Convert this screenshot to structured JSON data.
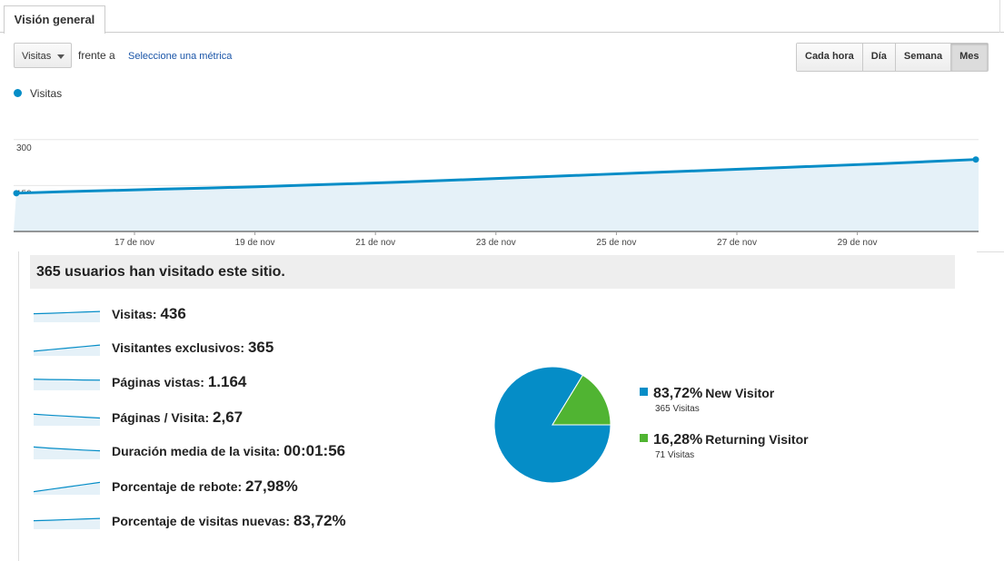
{
  "tab": {
    "label": "Visión general"
  },
  "controls": {
    "metric_select": "Visitas",
    "versus_text": "frente a",
    "select_metric_link": "Seleccione una métrica",
    "granularity": [
      "Cada hora",
      "Día",
      "Semana",
      "Mes"
    ],
    "granularity_active": "Mes"
  },
  "colors": {
    "accent": "#058dc7",
    "returning": "#50b432"
  },
  "chart_data": {
    "type": "area",
    "series": [
      {
        "name": "Visitas",
        "values": [
          125,
          130,
          134,
          138,
          142,
          146,
          151,
          156,
          161,
          167,
          173,
          179,
          185,
          191,
          197,
          203,
          209,
          215,
          221,
          228,
          235
        ]
      }
    ],
    "y_ticks": [
      150,
      300
    ],
    "ylim": [
      0,
      400
    ],
    "x_tick_labels": [
      "17 de nov",
      "19 de nov",
      "21 de nov",
      "23 de nov",
      "25 de nov",
      "27 de nov",
      "29 de nov"
    ],
    "grid": true
  },
  "legend": {
    "series_label": "Visitas"
  },
  "summary": {
    "text": "365 usuarios han visitado este sitio."
  },
  "metrics": [
    {
      "label": "Visitas:",
      "value": "436",
      "spark": [
        0.55,
        0.58,
        0.62,
        0.66,
        0.7
      ]
    },
    {
      "label": "Visitantes exclusivos:",
      "value": "365",
      "spark": [
        0.3,
        0.4,
        0.5,
        0.6,
        0.7
      ]
    },
    {
      "label": "Páginas vistas:",
      "value": "1.164",
      "spark": [
        0.72,
        0.7,
        0.69,
        0.67,
        0.66
      ]
    },
    {
      "label": "Páginas / Visita:",
      "value": "2,67",
      "spark": [
        0.75,
        0.68,
        0.62,
        0.56,
        0.5
      ]
    },
    {
      "label": "Duración media de la visita:",
      "value": "00:01:56",
      "spark": [
        0.8,
        0.72,
        0.66,
        0.6,
        0.55
      ]
    },
    {
      "label": "Porcentaje de rebote:",
      "value": "27,98%",
      "spark": [
        0.2,
        0.35,
        0.5,
        0.65,
        0.8
      ]
    },
    {
      "label": "Porcentaje de visitas nuevas:",
      "value": "83,72%",
      "spark": [
        0.55,
        0.58,
        0.62,
        0.66,
        0.7
      ]
    }
  ],
  "pie": {
    "slices": [
      {
        "name": "New Visitor",
        "pct_label": "83,72%",
        "count_label": "365 Visitas",
        "fraction": 0.8372,
        "color": "#058dc7"
      },
      {
        "name": "Returning Visitor",
        "pct_label": "16,28%",
        "count_label": "71 Visitas",
        "fraction": 0.1628,
        "color": "#50b432"
      }
    ]
  }
}
